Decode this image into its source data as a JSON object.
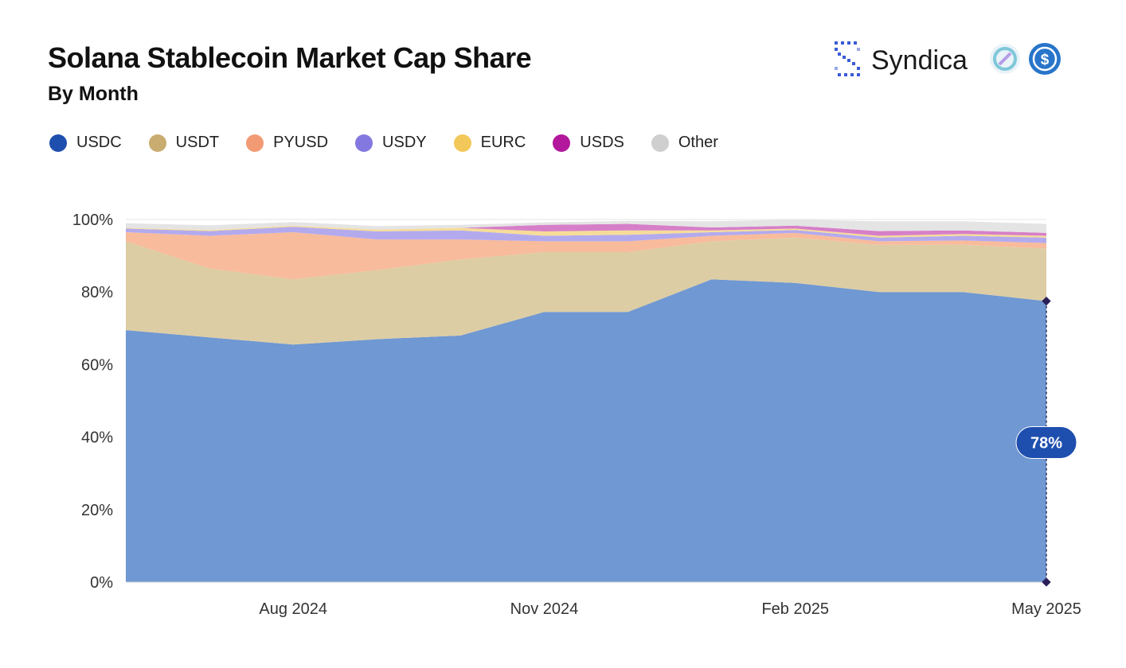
{
  "header": {
    "title": "Solana Stablecoin Market Cap Share",
    "subtitle": "By Month",
    "brand": "Syndica"
  },
  "icons": {
    "brand_logo": "syndica-logo-icon",
    "token_1": "usdy-token-icon",
    "token_2": "usdc-token-icon"
  },
  "chart_data": {
    "type": "area",
    "stacked": true,
    "normalized": true,
    "title": "Solana Stablecoin Market Cap Share",
    "subtitle": "By Month",
    "x": [
      "2024-06",
      "2024-07",
      "2024-08",
      "2024-09",
      "2024-10",
      "2024-11",
      "2024-12",
      "2025-01",
      "2025-02",
      "2025-03",
      "2025-04",
      "2025-05"
    ],
    "x_tick_labels": [
      {
        "x": "2024-08",
        "label": "Aug 2024"
      },
      {
        "x": "2024-11",
        "label": "Nov 2024"
      },
      {
        "x": "2025-02",
        "label": "Feb 2025"
      },
      {
        "x": "2025-05",
        "label": "May 2025"
      }
    ],
    "y_ticks": [
      "0%",
      "20%",
      "40%",
      "60%",
      "80%",
      "100%"
    ],
    "ylim": [
      0,
      100
    ],
    "grid": true,
    "legend": "top-left",
    "series": [
      {
        "name": "USDC",
        "color": "#1f4fae",
        "fill": "#7098d2",
        "values": [
          69.5,
          67.5,
          65.5,
          67.0,
          68.0,
          74.5,
          74.5,
          83.5,
          82.5,
          80.0,
          80.0,
          77.5
        ]
      },
      {
        "name": "USDT",
        "color": "#c9ac6f",
        "fill": "#ddcda4",
        "values": [
          24.5,
          19.0,
          18.0,
          19.0,
          21.0,
          16.5,
          16.5,
          10.5,
          12.5,
          13.0,
          13.0,
          14.5
        ]
      },
      {
        "name": "PYUSD",
        "color": "#f29a74",
        "fill": "#f8bb9c",
        "values": [
          2.5,
          9.0,
          13.0,
          8.5,
          5.5,
          3.0,
          3.0,
          1.5,
          1.3,
          1.0,
          1.2,
          1.5
        ]
      },
      {
        "name": "USDY",
        "color": "#8378e0",
        "fill": "#b3aaee",
        "values": [
          1.0,
          1.3,
          1.5,
          2.2,
          2.5,
          1.5,
          1.8,
          1.0,
          0.8,
          1.0,
          1.3,
          1.5
        ]
      },
      {
        "name": "EURC",
        "color": "#f2c85a",
        "fill": "#f6dc98",
        "values": [
          0.2,
          0.3,
          0.3,
          0.5,
          0.7,
          1.2,
          1.2,
          0.5,
          0.4,
          0.5,
          0.5,
          0.5
        ]
      },
      {
        "name": "USDS",
        "color": "#b3179c",
        "fill": "#d67fc8",
        "values": [
          0,
          0,
          0,
          0,
          0,
          1.8,
          1.8,
          0.8,
          0.8,
          1.3,
          1.0,
          0.8
        ]
      },
      {
        "name": "Other",
        "color": "#cfcfcf",
        "fill": "#e4e4e4",
        "values": [
          1.3,
          1.3,
          1.0,
          1.0,
          0.8,
          0.7,
          0.8,
          1.7,
          1.7,
          2.7,
          2.5,
          2.5
        ]
      }
    ],
    "highlight": {
      "series": "USDC",
      "x": "2025-05",
      "label": "78%"
    }
  }
}
